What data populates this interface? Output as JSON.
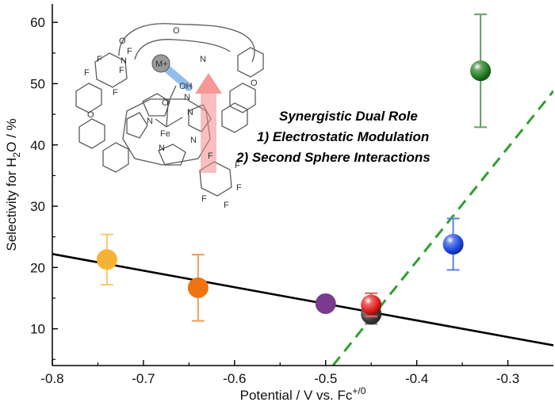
{
  "chart_data": {
    "type": "scatter",
    "title": "",
    "xlabel": {
      "main": "Potential / V vs. Fc",
      "sup": "+/0"
    },
    "ylabel": {
      "pre": "Selectivity for H",
      "sub": "2",
      "post": "O / %"
    },
    "xlim": [
      -0.8,
      -0.25
    ],
    "ylim": [
      4,
      63
    ],
    "xticks": [
      -0.8,
      -0.7,
      -0.6,
      -0.5,
      -0.4,
      -0.3
    ],
    "xtick_labels": [
      "-0.8",
      "-0.7",
      "-0.6",
      "-0.5",
      "-0.4",
      "-0.3"
    ],
    "yticks": [
      10,
      20,
      30,
      40,
      50,
      60
    ],
    "ytick_labels": [
      "10",
      "20",
      "30",
      "40",
      "50",
      "60"
    ],
    "grid": false,
    "points": [
      {
        "x": -0.74,
        "y": 21.3,
        "err": 4.1,
        "color": "#f5b335",
        "style": "flat"
      },
      {
        "x": -0.64,
        "y": 16.7,
        "err": 5.4,
        "color": "#ee7311",
        "style": "flat"
      },
      {
        "x": -0.5,
        "y": 14.1,
        "err": 0,
        "color": "#7a3b8f",
        "style": "flat"
      },
      {
        "x": -0.45,
        "y": 12.4,
        "err": 1.6,
        "color": "#3a3a3a",
        "style": "sphere"
      },
      {
        "x": -0.45,
        "y": 13.9,
        "err": 1.9,
        "color": "#e01818",
        "style": "sphere"
      },
      {
        "x": -0.36,
        "y": 23.8,
        "err": 4.2,
        "color": "#1a45e0",
        "style": "sphere"
      },
      {
        "x": -0.33,
        "y": 52.1,
        "err": 9.2,
        "color": "#1e7a1e",
        "style": "sphere"
      }
    ],
    "trend_lines": [
      {
        "style": "solid",
        "color": "#000000",
        "x": [
          -0.8,
          -0.25
        ],
        "y": [
          22.2,
          7.3
        ]
      },
      {
        "style": "dashed",
        "color": "#2ea02e",
        "x": [
          -0.492,
          -0.25
        ],
        "y": [
          4,
          48.8
        ]
      }
    ],
    "annotations": {
      "title": "Synergistic Dual Role",
      "line1": "1) Electrostatic Modulation",
      "line2": "2) Second Sphere Interactions",
      "title_color": "#111111",
      "line1_color": "#e0303a",
      "line2_color": "#1c6cd6"
    }
  },
  "molecule": {
    "metal_label": "M+",
    "hydroxide_label": "OH",
    "iron_label": "Fe",
    "fluorine_labels": [
      "F",
      "F",
      "F",
      "F",
      "F",
      "F",
      "F",
      "F",
      "F",
      "F"
    ],
    "nitrogen_labels": [
      "N",
      "N",
      "N",
      "N",
      "N",
      "N",
      "N"
    ],
    "oxygen_labels": [
      "O",
      "O",
      "O",
      "O",
      "O"
    ]
  }
}
